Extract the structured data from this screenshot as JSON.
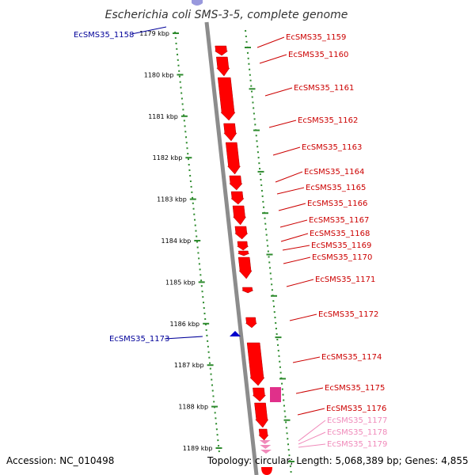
{
  "title": "Escherichia coli SMS-3-5, complete genome",
  "footer": {
    "accession": "Accession: NC_010498",
    "topology": "Topology: circular; Length: 5,068,389 bp; Genes: 4,855"
  },
  "colors": {
    "backbone": "#8c8c8c",
    "ruler_tick": "#2e8b2e",
    "forward_gene": "#ff0000",
    "reverse_gene": "#0000cc",
    "rna_gene": "#e0308a",
    "faded_label": "#f08aba"
  },
  "ruler": [
    "1179 kbp",
    "1180 kbp",
    "1181 kbp",
    "1182 kbp",
    "1183 kbp",
    "1184 kbp",
    "1185 kbp",
    "1186 kbp",
    "1187 kbp",
    "1188 kbp",
    "1189 kbp"
  ],
  "right_labels": [
    {
      "text": "EcSMS35_1159",
      "color": "#cc0000"
    },
    {
      "text": "EcSMS35_1160",
      "color": "#cc0000"
    },
    {
      "text": "EcSMS35_1161",
      "color": "#cc0000"
    },
    {
      "text": "EcSMS35_1162",
      "color": "#cc0000"
    },
    {
      "text": "EcSMS35_1163",
      "color": "#cc0000"
    },
    {
      "text": "EcSMS35_1164",
      "color": "#cc0000"
    },
    {
      "text": "EcSMS35_1165",
      "color": "#cc0000"
    },
    {
      "text": "EcSMS35_1166",
      "color": "#cc0000"
    },
    {
      "text": "EcSMS35_1167",
      "color": "#cc0000"
    },
    {
      "text": "EcSMS35_1168",
      "color": "#cc0000"
    },
    {
      "text": "EcSMS35_1169",
      "color": "#cc0000"
    },
    {
      "text": "EcSMS35_1170",
      "color": "#cc0000"
    },
    {
      "text": "EcSMS35_1171",
      "color": "#cc0000"
    },
    {
      "text": "EcSMS35_1172",
      "color": "#cc0000"
    },
    {
      "text": "EcSMS35_1174",
      "color": "#cc0000"
    },
    {
      "text": "EcSMS35_1175",
      "color": "#cc0000"
    },
    {
      "text": "EcSMS35_1176",
      "color": "#cc0000"
    },
    {
      "text": "EcSMS35_1177",
      "color": "#f08aba"
    },
    {
      "text": "EcSMS35_1178",
      "color": "#f08aba"
    },
    {
      "text": "EcSMS35_1179",
      "color": "#f08aba"
    }
  ],
  "left_labels": [
    {
      "text": "EcSMS35_1158",
      "color": "#000099"
    },
    {
      "text": "EcSMS35_1173",
      "color": "#000099"
    }
  ]
}
